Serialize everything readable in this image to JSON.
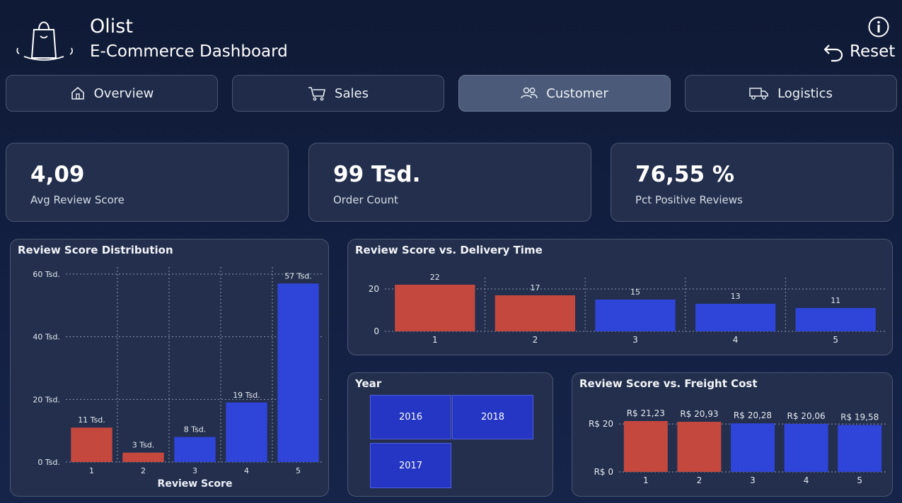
{
  "header": {
    "title": "Olist",
    "subtitle": "E-Commerce Dashboard",
    "reset_label": "Reset",
    "info_icon": "info-icon",
    "logo_icon": "shopping-bag-icon"
  },
  "tabs": [
    {
      "label": "Overview",
      "icon": "home-icon",
      "active": false
    },
    {
      "label": "Sales",
      "icon": "cart-icon",
      "active": false
    },
    {
      "label": "Customer",
      "icon": "users-icon",
      "active": true
    },
    {
      "label": "Logistics",
      "icon": "truck-icon",
      "active": false
    }
  ],
  "kpis": [
    {
      "value": "4,09",
      "label": "Avg Review Score"
    },
    {
      "value": "99 Tsd.",
      "label": "Order Count"
    },
    {
      "value": "76,55 %",
      "label": "Pct Positive Reviews"
    }
  ],
  "colors": {
    "negative": "#c5483f",
    "positive": "#2f44d8",
    "background": "#16244a",
    "panel": "#232f4d"
  },
  "year_slicer": {
    "title": "Year",
    "options": [
      "2016",
      "2018",
      "2017"
    ]
  },
  "chart_data": [
    {
      "id": "dist",
      "type": "bar",
      "title": "Review Score Distribution",
      "xlabel": "Review Score",
      "ylabel": "",
      "categories": [
        "1",
        "2",
        "3",
        "4",
        "5"
      ],
      "values": [
        11000,
        3000,
        8000,
        19000,
        57000
      ],
      "data_labels": [
        "11 Tsd.",
        "3 Tsd.",
        "8 Tsd.",
        "19 Tsd.",
        "57 Tsd."
      ],
      "bar_colors": [
        "#c5483f",
        "#c5483f",
        "#2f44d8",
        "#2f44d8",
        "#2f44d8"
      ],
      "ylim": [
        0,
        60000
      ],
      "yticks": [
        0,
        20000,
        40000,
        60000
      ],
      "ytick_labels": [
        "0 Tsd.",
        "20 Tsd.",
        "40 Tsd.",
        "60 Tsd."
      ],
      "grid": true
    },
    {
      "id": "delivery",
      "type": "bar",
      "title": "Review Score vs. Delivery Time",
      "xlabel": "",
      "ylabel": "",
      "categories": [
        "1",
        "2",
        "3",
        "4",
        "5"
      ],
      "values": [
        22,
        17,
        15,
        13,
        11
      ],
      "data_labels": [
        "22",
        "17",
        "15",
        "13",
        "11"
      ],
      "bar_colors": [
        "#c5483f",
        "#c5483f",
        "#2f44d8",
        "#2f44d8",
        "#2f44d8"
      ],
      "ylim": [
        0,
        22
      ],
      "yticks": [
        0,
        20
      ],
      "ytick_labels": [
        "0",
        "20"
      ],
      "grid": true
    },
    {
      "id": "freight",
      "type": "bar",
      "title": "Review Score vs. Freight Cost",
      "xlabel": "",
      "ylabel": "",
      "categories": [
        "1",
        "2",
        "3",
        "4",
        "5"
      ],
      "values": [
        21.23,
        20.93,
        20.28,
        20.06,
        19.58
      ],
      "data_labels": [
        "R$ 21,23",
        "R$ 20,93",
        "R$ 20,28",
        "R$ 20,06",
        "R$ 19,58"
      ],
      "bar_colors": [
        "#c5483f",
        "#c5483f",
        "#2f44d8",
        "#2f44d8",
        "#2f44d8"
      ],
      "ylim": [
        0,
        21.23
      ],
      "yticks": [
        0,
        20
      ],
      "ytick_labels": [
        "R$ 0",
        "R$ 20"
      ],
      "grid": true
    }
  ]
}
